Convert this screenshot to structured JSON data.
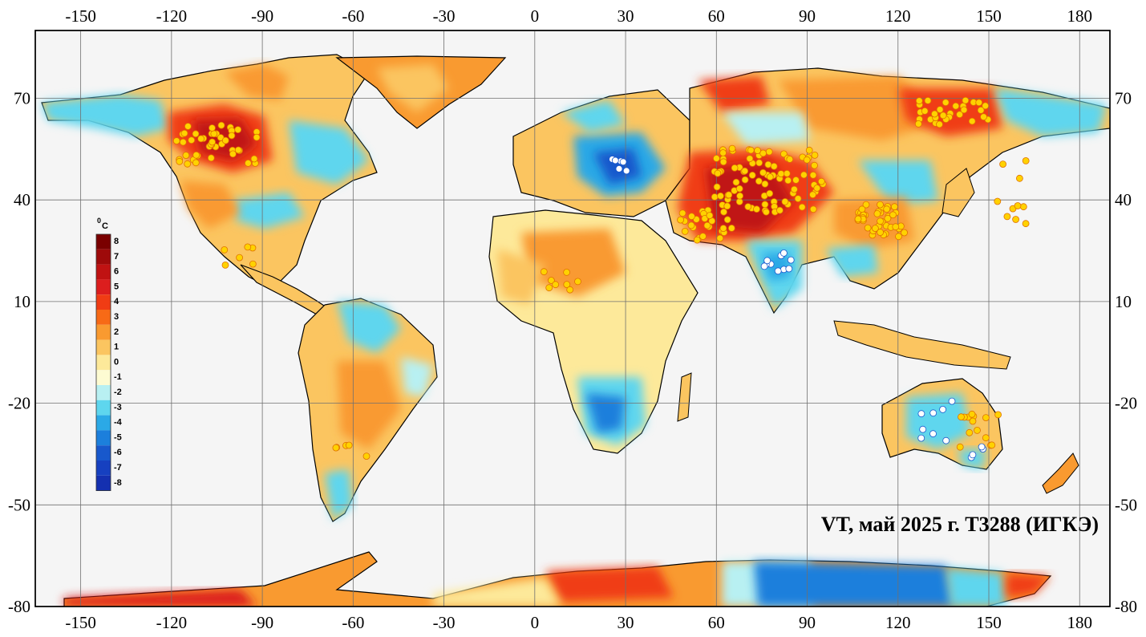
{
  "title": "VT, май 2025 г. T3288 (ИГКЭ)",
  "axes": {
    "x_ticks": [
      "-150",
      "-120",
      "-90",
      "-60",
      "-30",
      "0",
      "30",
      "60",
      "90",
      "120",
      "150",
      "180"
    ],
    "x_values": [
      -150,
      -120,
      -90,
      -60,
      -30,
      0,
      30,
      60,
      90,
      120,
      150,
      180
    ],
    "y_ticks": [
      "70",
      "40",
      "10",
      "-20",
      "-50",
      "-80"
    ],
    "y_values": [
      70,
      40,
      10,
      -20,
      -50,
      -80
    ],
    "lon_range": [
      -165,
      190
    ],
    "lat_range": [
      -80,
      90
    ]
  },
  "legend": {
    "unit": "°C",
    "unit_sup": "0",
    "unit_letter": "C",
    "labels": [
      "8",
      "7",
      "6",
      "5",
      "4",
      "3",
      "2",
      "1",
      "0",
      "-1",
      "-2",
      "-3",
      "-4",
      "-5",
      "-6",
      "-7",
      "-8"
    ],
    "colors": [
      "#7a0000",
      "#9e0a0a",
      "#c01212",
      "#dc1e1e",
      "#f03c14",
      "#f76a16",
      "#f99a30",
      "#fbc560",
      "#fde99a",
      "#fdfbd2",
      "#b8f0f2",
      "#5ed6ee",
      "#2ba9e6",
      "#1c7fdc",
      "#1858cc",
      "#1640c0",
      "#1430b0"
    ]
  },
  "colors": {
    "background": "#f5f5f5",
    "grid": "#707070",
    "warm_point": "#ffd200",
    "cold_point": "#ffffff"
  }
}
